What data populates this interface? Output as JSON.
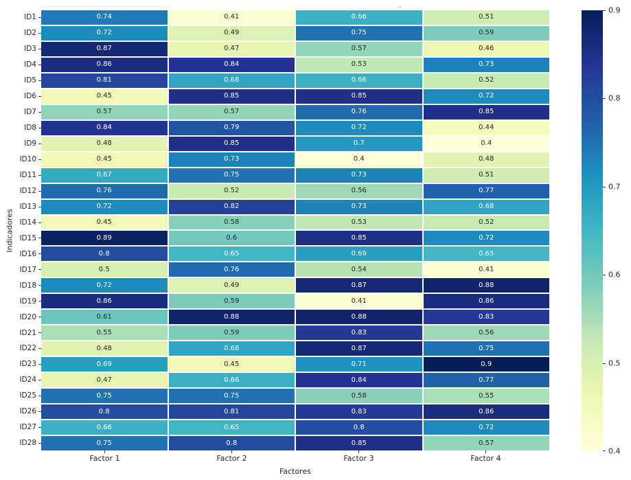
{
  "title_dot": ".",
  "chart_data": {
    "type": "heatmap",
    "title": "",
    "xlabel": "Factores",
    "ylabel": "Indicadores",
    "columns": [
      "Factor 1",
      "Factor 2",
      "Factor 3",
      "Factor 4"
    ],
    "rows": [
      "ID1",
      "ID2",
      "ID3",
      "ID4",
      "ID5",
      "ID6",
      "ID7",
      "ID8",
      "ID9",
      "ID10",
      "ID11",
      "ID12",
      "ID13",
      "ID14",
      "ID15",
      "ID16",
      "ID17",
      "ID18",
      "ID19",
      "ID20",
      "ID21",
      "ID22",
      "ID23",
      "ID24",
      "ID25",
      "ID26",
      "ID27",
      "ID28"
    ],
    "values": [
      [
        0.74,
        0.41,
        0.66,
        0.51
      ],
      [
        0.72,
        0.49,
        0.75,
        0.59
      ],
      [
        0.87,
        0.47,
        0.57,
        0.46
      ],
      [
        0.86,
        0.84,
        0.53,
        0.73
      ],
      [
        0.81,
        0.68,
        0.66,
        0.52
      ],
      [
        0.45,
        0.85,
        0.85,
        0.72
      ],
      [
        0.57,
        0.57,
        0.76,
        0.85
      ],
      [
        0.84,
        0.79,
        0.72,
        0.44
      ],
      [
        0.48,
        0.85,
        0.7,
        0.4
      ],
      [
        0.45,
        0.73,
        0.4,
        0.48
      ],
      [
        0.67,
        0.75,
        0.73,
        0.51
      ],
      [
        0.76,
        0.52,
        0.56,
        0.77
      ],
      [
        0.72,
        0.82,
        0.73,
        0.68
      ],
      [
        0.45,
        0.58,
        0.53,
        0.52
      ],
      [
        0.89,
        0.6,
        0.85,
        0.72
      ],
      [
        0.8,
        0.65,
        0.69,
        0.65
      ],
      [
        0.5,
        0.76,
        0.54,
        0.41
      ],
      [
        0.72,
        0.49,
        0.87,
        0.88
      ],
      [
        0.86,
        0.59,
        0.41,
        0.86
      ],
      [
        0.61,
        0.88,
        0.88,
        0.83
      ],
      [
        0.55,
        0.59,
        0.83,
        0.56
      ],
      [
        0.48,
        0.68,
        0.87,
        0.75
      ],
      [
        0.69,
        0.45,
        0.71,
        0.9
      ],
      [
        0.47,
        0.66,
        0.84,
        0.77
      ],
      [
        0.75,
        0.75,
        0.58,
        0.55
      ],
      [
        0.8,
        0.81,
        0.83,
        0.86
      ],
      [
        0.66,
        0.65,
        0.8,
        0.72
      ],
      [
        0.75,
        0.8,
        0.85,
        0.57
      ]
    ],
    "vmin": 0.4,
    "vmax": 0.9,
    "colormap": "YlGnBu",
    "colorbar_ticks": [
      0.4,
      0.5,
      0.6,
      0.7,
      0.8,
      0.9
    ],
    "annotated": true,
    "grid": false,
    "legend_position": "right-colorbar"
  },
  "colors": {
    "ylgnbu_stops": [
      "#ffffd9",
      "#edf8b1",
      "#c7e9b4",
      "#7fcdbb",
      "#41b6c4",
      "#1d91c0",
      "#225ea8",
      "#253494",
      "#081d58"
    ],
    "text_dark": "#262626",
    "text_light": "#ffffff",
    "grid_line": "#ffffff",
    "background": "#ffffff"
  }
}
